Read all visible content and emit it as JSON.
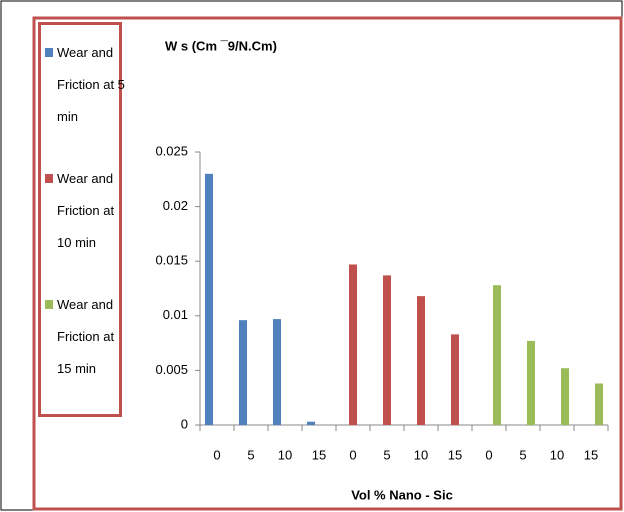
{
  "chart_data": {
    "type": "bar",
    "y_label": "W s (Cm ¯9/N.Cm)",
    "x_label": "Vol % Nano - Sic",
    "categories": [
      "0",
      "5",
      "10",
      "15",
      "0",
      "5",
      "10",
      "15",
      "0",
      "5",
      "10",
      "15"
    ],
    "series": [
      {
        "name": "Wear and Friction at 5 min",
        "color": "#4f81bd",
        "values": [
          0.023,
          0.0096,
          0.0097,
          0.0003,
          null,
          null,
          null,
          null,
          null,
          null,
          null,
          null
        ]
      },
      {
        "name": "Wear and Friction at 10 min",
        "color": "#c0504d",
        "values": [
          null,
          null,
          null,
          null,
          0.0147,
          0.0137,
          0.0118,
          0.0083,
          null,
          null,
          null,
          null
        ]
      },
      {
        "name": "Wear and Friction at 15 min",
        "color": "#9bbb59",
        "values": [
          null,
          null,
          null,
          null,
          null,
          null,
          null,
          null,
          0.0128,
          0.0077,
          0.0052,
          0.0038
        ]
      }
    ],
    "ylim": [
      0,
      0.025
    ],
    "yticks": [
      0,
      0.005,
      0.01,
      0.015,
      0.02,
      0.025
    ],
    "legend": "left"
  }
}
